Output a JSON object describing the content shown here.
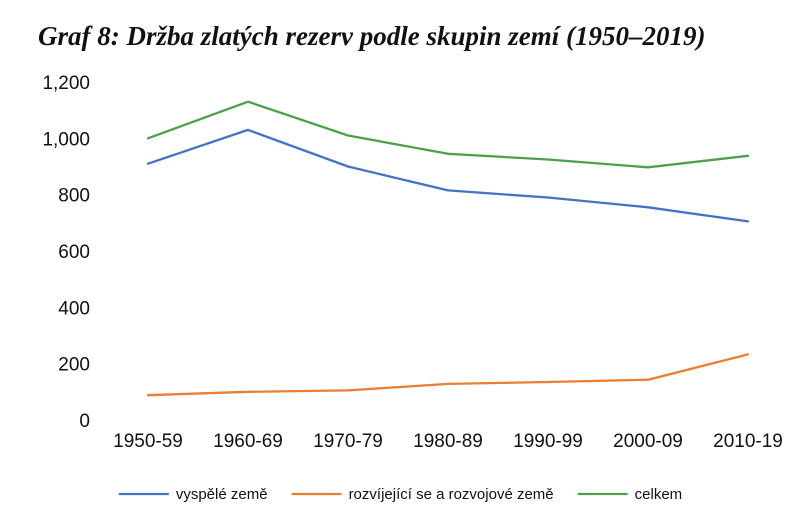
{
  "chart_data": {
    "type": "line",
    "title": "Graf 8: Držba zlatých rezerv podle skupin zemí (1950–2019)",
    "categories": [
      "1950-59",
      "1960-69",
      "1970-79",
      "1980-89",
      "1990-99",
      "2000-09",
      "2010-19"
    ],
    "y_ticks": [
      "0",
      "200",
      "400",
      "600",
      "800",
      "1,000",
      "1,200"
    ],
    "ylim": [
      0,
      1200
    ],
    "grid": false,
    "legend_position": "bottom",
    "series": [
      {
        "name": "vyspělé země",
        "color": "#4472C4",
        "values": [
          910,
          1030,
          900,
          815,
          790,
          755,
          705
        ]
      },
      {
        "name": "rozvíjející se a rozvojové země",
        "color": "#ED7D31",
        "values": [
          88,
          100,
          105,
          128,
          135,
          143,
          233
        ]
      },
      {
        "name": "celkem",
        "color": "#4CA14A",
        "values": [
          1000,
          1130,
          1010,
          945,
          925,
          897,
          938
        ]
      }
    ]
  }
}
